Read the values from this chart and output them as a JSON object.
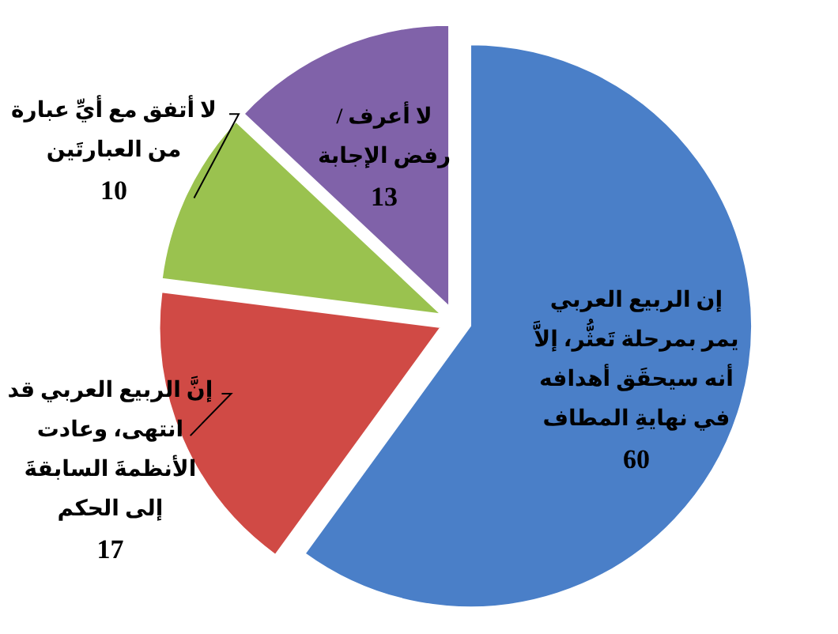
{
  "chart_data": {
    "type": "pie",
    "categories": [
      "إن الربيع العربي يمر بمرحلة تَعثُّر، إلاَّ أنه سيحقَق أهدافه في نهايةِ المطاف",
      "إنَّ الربيع العربي قد انتهى، وعادت الأنظمةَ السابقةَ إلى الحكم",
      "لا أتفق مع أيِّ عبارة من العبارتَين",
      "لا أعرف / رفض الإجابة"
    ],
    "values": [
      60,
      17,
      10,
      13
    ],
    "colors": [
      "#4a7fc8",
      "#d04a45",
      "#9ac24f",
      "#8062a9"
    ],
    "data_labels": true
  }
}
